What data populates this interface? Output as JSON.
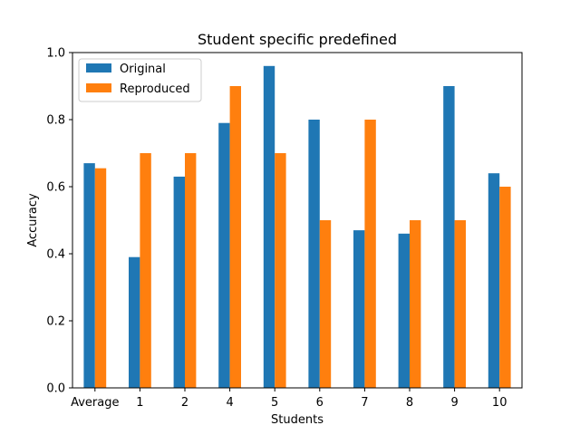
{
  "chart_data": {
    "type": "bar",
    "title": "Student specific predefined",
    "xlabel": "Students",
    "ylabel": "Accuracy",
    "categories": [
      "Average",
      "1",
      "2",
      "4",
      "5",
      "6",
      "7",
      "8",
      "9",
      "10"
    ],
    "series": [
      {
        "name": "Original",
        "color": "#1f77b4",
        "values": [
          0.67,
          0.39,
          0.63,
          0.79,
          0.96,
          0.8,
          0.47,
          0.46,
          0.9,
          0.64
        ]
      },
      {
        "name": "Reproduced",
        "color": "#ff7f0e",
        "values": [
          0.655,
          0.7,
          0.7,
          0.9,
          0.7,
          0.5,
          0.8,
          0.5,
          0.5,
          0.6
        ]
      }
    ],
    "ylim": [
      0,
      1.0
    ],
    "yticks": [
      0.0,
      0.2,
      0.4,
      0.6,
      0.8,
      1.0
    ],
    "ytick_labels": [
      "0.0",
      "0.2",
      "0.4",
      "0.6",
      "0.8",
      "1.0"
    ],
    "grid": false,
    "legend_position": "top-left"
  }
}
